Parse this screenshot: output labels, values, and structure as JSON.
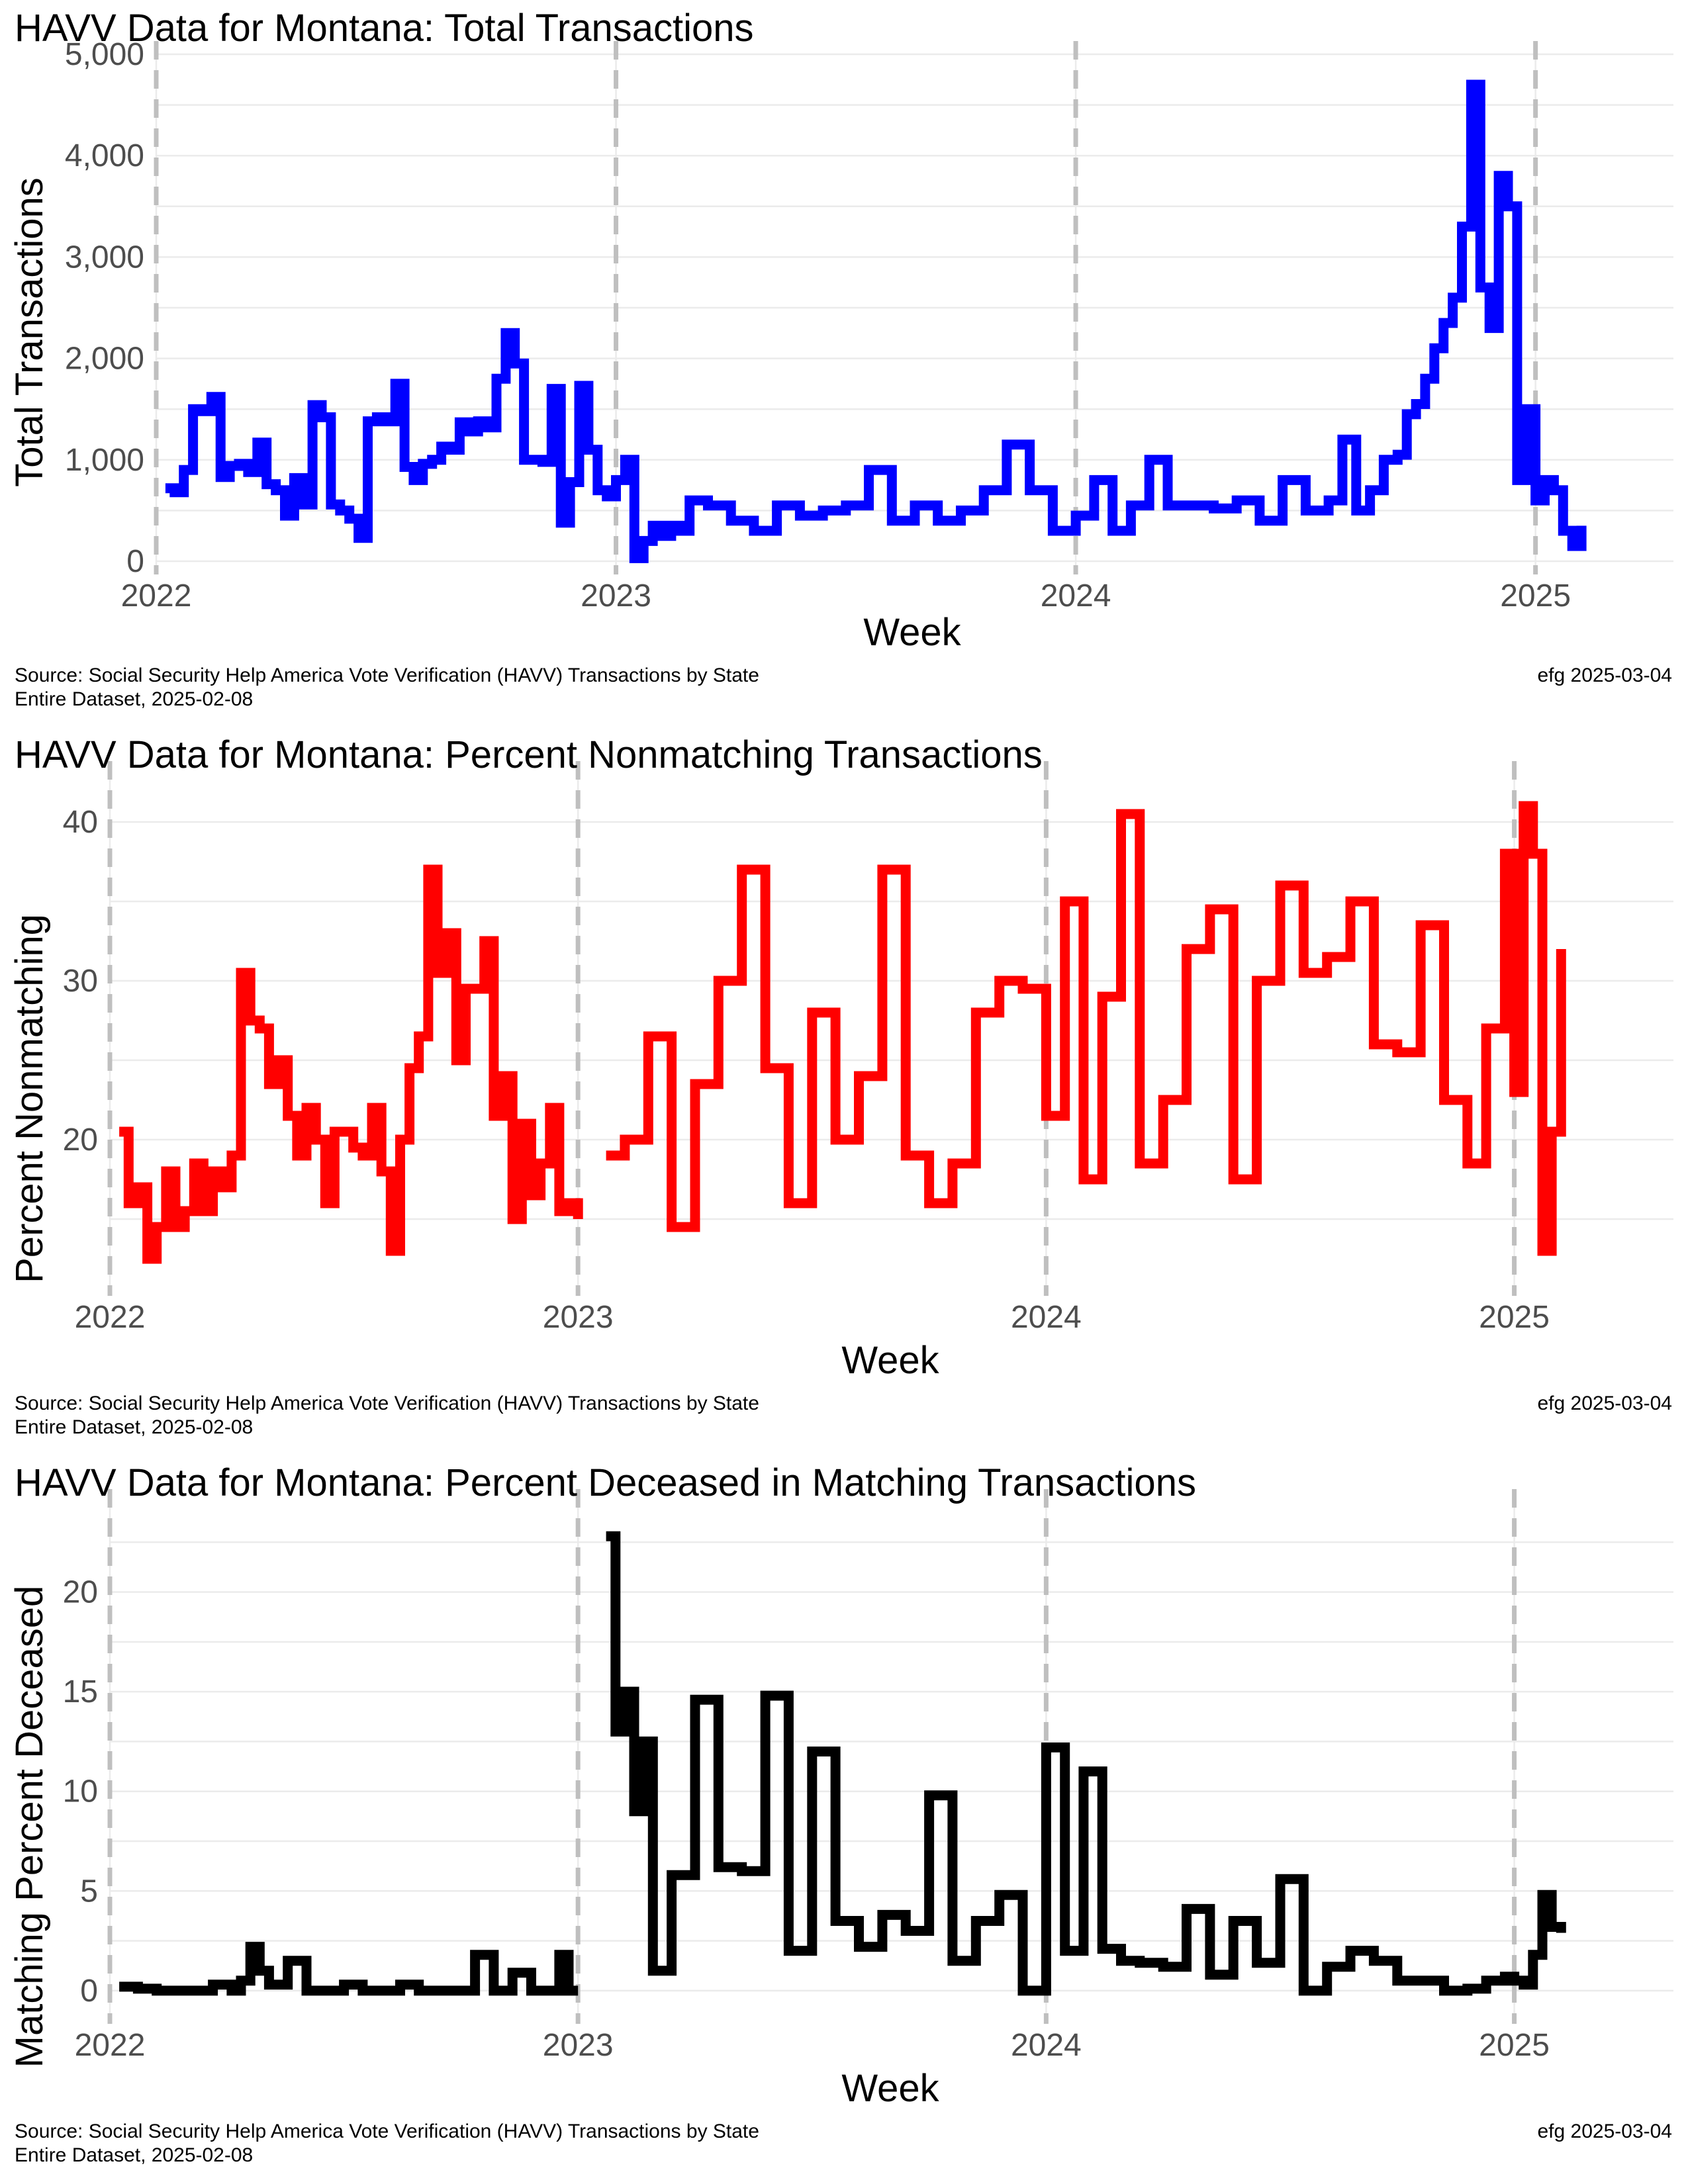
{
  "chart_data": [
    {
      "type": "line",
      "title": "HAVV Data for Montana:  Total Transactions",
      "xlabel": "Week",
      "ylabel": "Total Transactions",
      "ylim": [
        0,
        5000
      ],
      "yticks": [
        0,
        1000,
        2000,
        3000,
        4000,
        5000
      ],
      "ytick_labels": [
        "0",
        "1,000",
        "2,000",
        "3,000",
        "4,000",
        "5,000"
      ],
      "xlim": [
        2022.0,
        2025.3
      ],
      "xticks": [
        2022,
        2023,
        2024,
        2025
      ],
      "xtick_labels": [
        "2022",
        "2023",
        "2024",
        "2025"
      ],
      "grid": true,
      "color": "#0000ff",
      "year_markers": [
        2022,
        2023,
        2024,
        2025
      ],
      "series": [
        {
          "x": [
            2022.02,
            2022.04,
            2022.06,
            2022.08,
            2022.1,
            2022.12,
            2022.14,
            2022.16,
            2022.18,
            2022.2,
            2022.22,
            2022.24,
            2022.26,
            2022.28,
            2022.3,
            2022.32,
            2022.34,
            2022.36,
            2022.38,
            2022.4,
            2022.42,
            2022.44,
            2022.46,
            2022.48,
            2022.5,
            2022.52,
            2022.54,
            2022.56,
            2022.58,
            2022.6,
            2022.62,
            2022.64,
            2022.66,
            2022.68,
            2022.7,
            2022.72,
            2022.74,
            2022.76,
            2022.78,
            2022.8,
            2022.82,
            2022.84,
            2022.86,
            2022.88,
            2022.9,
            2022.92,
            2022.94,
            2022.96,
            2022.98,
            2023.0,
            2023.02,
            2023.04,
            2023.06,
            2023.08,
            2023.1,
            2023.12,
            2023.14,
            2023.16,
            2023.2,
            2023.25,
            2023.3,
            2023.35,
            2023.4,
            2023.45,
            2023.5,
            2023.55,
            2023.6,
            2023.65,
            2023.7,
            2023.75,
            2023.8,
            2023.85,
            2023.9,
            2023.95,
            2024.0,
            2024.04,
            2024.08,
            2024.12,
            2024.16,
            2024.2,
            2024.25,
            2024.3,
            2024.35,
            2024.4,
            2024.45,
            2024.5,
            2024.55,
            2024.58,
            2024.61,
            2024.64,
            2024.67,
            2024.7,
            2024.72,
            2024.74,
            2024.76,
            2024.78,
            2024.8,
            2024.82,
            2024.84,
            2024.86,
            2024.88,
            2024.9,
            2024.92,
            2024.94,
            2024.96,
            2024.98,
            2025.0,
            2025.02,
            2025.04,
            2025.06,
            2025.08,
            2025.1
          ],
          "y": [
            720,
            680,
            900,
            1500,
            1480,
            1620,
            830,
            940,
            960,
            880,
            1170,
            760,
            700,
            450,
            820,
            560,
            1540,
            1420,
            560,
            500,
            420,
            230,
            1380,
            1420,
            1380,
            1750,
            930,
            800,
            960,
            1000,
            1130,
            1100,
            1370,
            1280,
            1380,
            1320,
            1800,
            2250,
            1950,
            1000,
            1000,
            980,
            1700,
            380,
            780,
            1730,
            1100,
            700,
            640,
            800,
            1000,
            30,
            200,
            350,
            250,
            350,
            300,
            600,
            550,
            400,
            300,
            550,
            450,
            500,
            550,
            900,
            400,
            550,
            400,
            500,
            700,
            1150,
            700,
            300,
            450,
            800,
            300,
            550,
            1000,
            550,
            550,
            520,
            600,
            400,
            800,
            500,
            600,
            1200,
            500,
            700,
            1000,
            1050,
            1450,
            1550,
            1800,
            2100,
            2350,
            2600,
            3300,
            4700,
            2700,
            2300,
            3800,
            3500,
            800,
            1500,
            600,
            800,
            700,
            300,
            150,
            350
          ]
        }
      ]
    },
    {
      "type": "line",
      "title": "HAVV Data for Montana:  Percent Nonmatching Transactions",
      "xlabel": "Week",
      "ylabel": "Percent Nonmatching",
      "ylim": [
        11,
        43
      ],
      "yticks": [
        20,
        30,
        40
      ],
      "ytick_labels": [
        "20",
        "30",
        "40"
      ],
      "xlim": [
        2022.0,
        2025.34
      ],
      "xticks": [
        2022,
        2023,
        2024,
        2025
      ],
      "xtick_labels": [
        "2022",
        "2023",
        "2024",
        "2025"
      ],
      "grid": true,
      "color": "#ff0000",
      "year_markers": [
        2022,
        2023,
        2024,
        2025
      ],
      "series": [
        {
          "x": [
            2022.02,
            2022.04,
            2022.06,
            2022.08,
            2022.1,
            2022.12,
            2022.14,
            2022.16,
            2022.18,
            2022.2,
            2022.22,
            2022.24,
            2022.26,
            2022.28,
            2022.3,
            2022.32,
            2022.34,
            2022.36,
            2022.38,
            2022.4,
            2022.42,
            2022.44,
            2022.46,
            2022.48,
            2022.5,
            2022.52,
            2022.54,
            2022.56,
            2022.58,
            2022.6,
            2022.62,
            2022.64,
            2022.66,
            2022.68,
            2022.7,
            2022.72,
            2022.74,
            2022.76,
            2022.78,
            2022.8,
            2022.82,
            2022.84,
            2022.86,
            2022.88,
            2022.9,
            2022.92,
            2022.94,
            2022.96,
            2022.98,
            2023.0,
            2023.02,
            2023.06,
            2023.1,
            2023.15,
            2023.2,
            2023.25,
            2023.3,
            2023.35,
            2023.4,
            2023.45,
            2023.5,
            2023.55,
            2023.6,
            2023.65,
            2023.7,
            2023.75,
            2023.8,
            2023.85,
            2023.9,
            2023.95,
            2024.0,
            2024.04,
            2024.08,
            2024.12,
            2024.16,
            2024.2,
            2024.25,
            2024.3,
            2024.35,
            2024.4,
            2024.45,
            2024.5,
            2024.55,
            2024.6,
            2024.65,
            2024.7,
            2024.75,
            2024.8,
            2024.85,
            2024.9,
            2024.94,
            2024.98,
            2025.0,
            2025.02,
            2025.04,
            2025.06,
            2025.08,
            2025.1
          ],
          "y": [
            20.5,
            16,
            17,
            12.5,
            14.5,
            18,
            14.5,
            15.5,
            18.5,
            15.5,
            18,
            17,
            19,
            30.5,
            27.5,
            27,
            23.5,
            25,
            21.5,
            19,
            22,
            20,
            16,
            20.5,
            20.5,
            19.5,
            19,
            22,
            18,
            13,
            20,
            24.5,
            26.5,
            37,
            30.5,
            33,
            25,
            29.5,
            29.5,
            32.5,
            21.5,
            24,
            15,
            21,
            16.5,
            18.5,
            22,
            15.5,
            16,
            15,
            null,
            19,
            20,
            26.5,
            14.5,
            23.5,
            30,
            37,
            24.5,
            16,
            28,
            20,
            24,
            37,
            19,
            16,
            18.5,
            28,
            30,
            29.5,
            21.5,
            35,
            17.5,
            29,
            40.5,
            18.5,
            22.5,
            32,
            34.5,
            17.5,
            30,
            36,
            30.5,
            31.5,
            35,
            26,
            25.5,
            33.5,
            22.5,
            18.5,
            27,
            38,
            23,
            41,
            38,
            13,
            20.5,
            32
          ]
        }
      ]
    },
    {
      "type": "line",
      "title": "HAVV Data for Montana:  Percent Deceased in Matching Transactions",
      "xlabel": "Week",
      "ylabel": "Matching Percent Deceased",
      "ylim": [
        -1,
        24.5
      ],
      "yticks": [
        0,
        5,
        10,
        15,
        20
      ],
      "ytick_labels": [
        "0",
        "5",
        "10",
        "15",
        "20"
      ],
      "xlim": [
        2022.0,
        2025.34
      ],
      "xticks": [
        2022,
        2023,
        2024,
        2025
      ],
      "xtick_labels": [
        "2022",
        "2023",
        "2024",
        "2025"
      ],
      "grid": true,
      "color": "#000000",
      "year_markers": [
        2022,
        2023,
        2024,
        2025
      ],
      "series": [
        {
          "x": [
            2022.02,
            2022.06,
            2022.1,
            2022.14,
            2022.18,
            2022.22,
            2022.26,
            2022.28,
            2022.3,
            2022.32,
            2022.34,
            2022.38,
            2022.42,
            2022.46,
            2022.5,
            2022.54,
            2022.58,
            2022.62,
            2022.66,
            2022.7,
            2022.72,
            2022.74,
            2022.78,
            2022.82,
            2022.86,
            2022.9,
            2022.94,
            2022.96,
            2022.98,
            2023.0,
            2023.02,
            2023.06,
            2023.08,
            2023.1,
            2023.12,
            2023.14,
            2023.16,
            2023.2,
            2023.25,
            2023.3,
            2023.35,
            2023.4,
            2023.45,
            2023.5,
            2023.55,
            2023.6,
            2023.65,
            2023.7,
            2023.75,
            2023.8,
            2023.85,
            2023.9,
            2023.95,
            2024.0,
            2024.04,
            2024.08,
            2024.12,
            2024.16,
            2024.2,
            2024.25,
            2024.3,
            2024.35,
            2024.4,
            2024.45,
            2024.5,
            2024.55,
            2024.6,
            2024.65,
            2024.7,
            2024.75,
            2024.8,
            2024.85,
            2024.9,
            2024.94,
            2024.98,
            2025.0,
            2025.02,
            2025.04,
            2025.06,
            2025.08,
            2025.1
          ],
          "y": [
            0.2,
            0.1,
            0,
            0,
            0,
            0.3,
            0,
            0.5,
            2.2,
            1.0,
            0.3,
            1.5,
            0,
            0,
            0.3,
            0,
            0,
            0.3,
            0,
            0,
            0,
            0,
            1.8,
            0,
            0.9,
            0,
            0,
            1.8,
            0,
            0,
            null,
            22.8,
            13,
            15,
            9,
            12.5,
            1,
            5.8,
            14.6,
            6.2,
            6,
            14.8,
            2,
            12,
            3.5,
            2.2,
            3.8,
            3,
            9.8,
            1.5,
            3.5,
            4.8,
            0,
            12.2,
            2,
            11,
            2.1,
            1.5,
            1.4,
            1.2,
            4.1,
            0.8,
            3.5,
            1.4,
            5.6,
            0,
            1.2,
            2,
            1.5,
            0.5,
            0.5,
            0,
            0.1,
            0.5,
            0.7,
            0.5,
            0.3,
            1.8,
            4.8,
            3.2,
            2.9
          ]
        }
      ]
    }
  ],
  "captions": [
    {
      "source_line1": "Source:  Social Security Help America Vote Verification (HAVV) Transactions by State",
      "source_line2": "Entire Dataset, 2025-02-08",
      "credit": "efg 2025-03-04"
    },
    {
      "source_line1": "Source:  Social Security Help America Vote Verification (HAVV) Transactions by State",
      "source_line2": "Entire Dataset, 2025-02-08",
      "credit": "efg 2025-03-04"
    },
    {
      "source_line1": "Source:  Social Security Help America Vote Verification (HAVV) Transactions by State",
      "source_line2": "Entire Dataset, 2025-02-08",
      "credit": "efg 2025-03-04"
    }
  ]
}
